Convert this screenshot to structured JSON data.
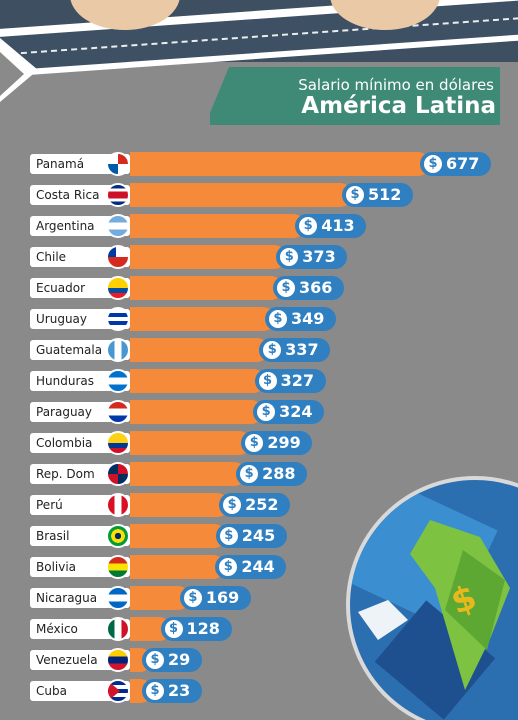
{
  "header": {
    "subtitle": "Salario mínimo en dólares",
    "title": "América Latina"
  },
  "chart_data": {
    "type": "bar",
    "orientation": "horizontal",
    "title": "América Latina",
    "subtitle": "Salario mínimo en dólares",
    "value_prefix": "$",
    "bar_color": "#f58a3a",
    "pill_color": "#2f7fc1",
    "categories": [
      "Panamá",
      "Costa Rica",
      "Argentina",
      "Chile",
      "Ecuador",
      "Uruguay",
      "Guatemala",
      "Hunduras",
      "Paraguay",
      "Colombia",
      "Rep. Dom",
      "Perú",
      "Brasil",
      "Bolivia",
      "Nicaragua",
      "México",
      "Venezuela",
      "Cuba"
    ],
    "values": [
      677,
      512,
      413,
      373,
      366,
      349,
      337,
      327,
      324,
      299,
      288,
      252,
      245,
      244,
      169,
      128,
      29,
      23
    ],
    "flags": [
      {
        "type": "quad",
        "colors": [
          "#ffffff",
          "#d52b1e",
          "#005aa7",
          "#ffffff"
        ]
      },
      {
        "type": "h",
        "colors": [
          "#002b7f",
          "#ffffff",
          "#ce1126",
          "#ce1126",
          "#ffffff",
          "#002b7f"
        ]
      },
      {
        "type": "h",
        "colors": [
          "#74acdf",
          "#ffffff",
          "#74acdf"
        ]
      },
      {
        "type": "chile",
        "colors": [
          "#0039a6",
          "#ffffff",
          "#d52b1e"
        ]
      },
      {
        "type": "h",
        "colors": [
          "#ffd100",
          "#ffd100",
          "#034ea2",
          "#ed1c24"
        ]
      },
      {
        "type": "h",
        "colors": [
          "#ffffff",
          "#0038a8",
          "#ffffff",
          "#0038a8",
          "#ffffff"
        ]
      },
      {
        "type": "v",
        "colors": [
          "#4997d0",
          "#ffffff",
          "#4997d0"
        ]
      },
      {
        "type": "h",
        "colors": [
          "#0073cf",
          "#ffffff",
          "#0073cf"
        ]
      },
      {
        "type": "h",
        "colors": [
          "#d52b1e",
          "#ffffff",
          "#0038a8"
        ]
      },
      {
        "type": "h",
        "colors": [
          "#fcd116",
          "#fcd116",
          "#003893",
          "#ce1126"
        ]
      },
      {
        "type": "quad",
        "colors": [
          "#002d62",
          "#ce1126",
          "#ce1126",
          "#002d62"
        ]
      },
      {
        "type": "v",
        "colors": [
          "#d91023",
          "#ffffff",
          "#d91023"
        ]
      },
      {
        "type": "brasil",
        "colors": [
          "#009c3b",
          "#ffdf00",
          "#002776"
        ]
      },
      {
        "type": "h",
        "colors": [
          "#d52b1e",
          "#f9e300",
          "#007934"
        ]
      },
      {
        "type": "h",
        "colors": [
          "#0067c6",
          "#ffffff",
          "#0067c6"
        ]
      },
      {
        "type": "v",
        "colors": [
          "#006847",
          "#ffffff",
          "#ce1126"
        ]
      },
      {
        "type": "h",
        "colors": [
          "#ffcc00",
          "#00247d",
          "#cf142b"
        ]
      },
      {
        "type": "cuba",
        "colors": [
          "#002a8f",
          "#ffffff",
          "#cf142b"
        ]
      }
    ]
  }
}
